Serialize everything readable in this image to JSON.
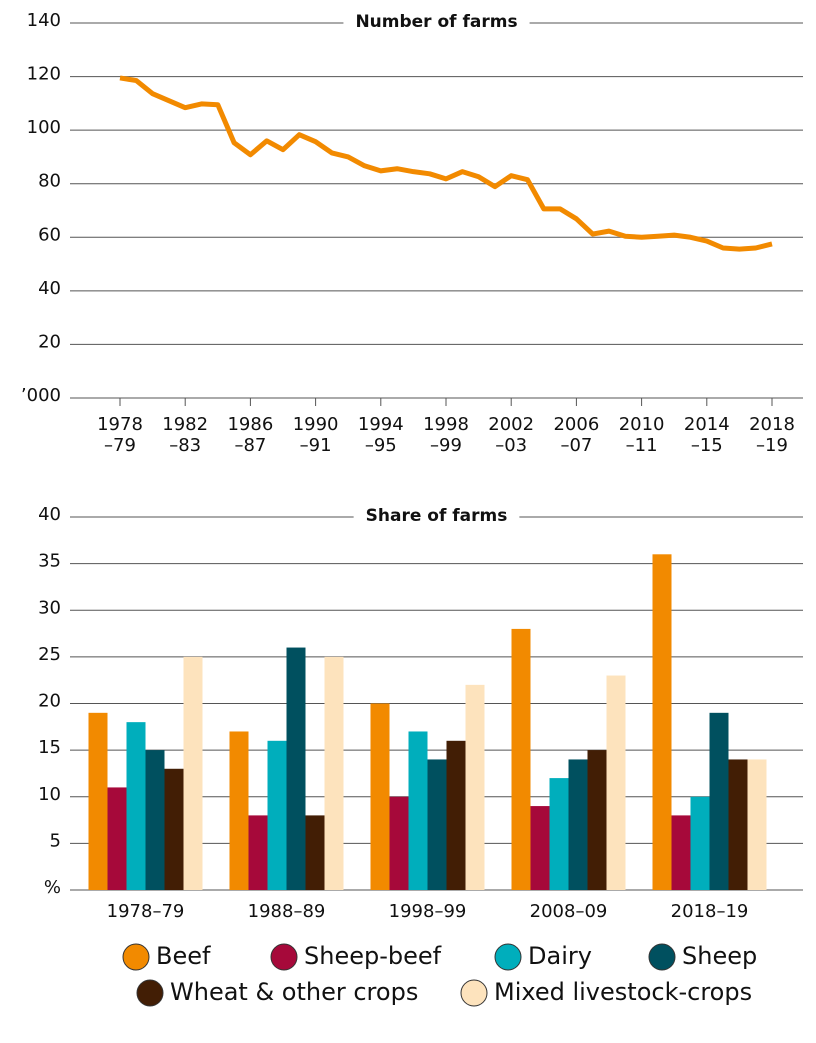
{
  "chart_data": [
    {
      "type": "line",
      "title": "Number of farms",
      "categories": [
        "1978–79",
        null,
        null,
        null,
        "1982–83",
        null,
        null,
        null,
        "1986–87",
        null,
        null,
        null,
        "1990–91",
        null,
        null,
        null,
        "1994–95",
        null,
        null,
        null,
        "1998–99",
        null,
        null,
        null,
        "2002–03",
        null,
        null,
        null,
        "2006–07",
        null,
        null,
        null,
        "2010–11",
        null,
        null,
        null,
        "2014–15",
        null,
        null,
        null,
        "2018–19"
      ],
      "values": [
        119.5,
        118.5,
        113.6,
        111,
        108.4,
        109.8,
        109.5,
        95.3,
        90.8,
        96,
        92.7,
        98.3,
        95.7,
        91.5,
        90,
        86.7,
        84.8,
        85.6,
        84.5,
        83.7,
        81.8,
        84.5,
        82.6,
        78.9,
        83,
        81.5,
        70.6,
        70.6,
        66.9,
        61.2,
        62.3,
        60.4,
        60,
        60.4,
        60.8,
        60,
        58.6,
        56,
        55.6,
        56,
        57.5
      ],
      "color": "#f28a00",
      "ylim": [
        0,
        140
      ],
      "yticks": [
        {
          "value": 0,
          "label": "’000"
        },
        20,
        40,
        60,
        80,
        100,
        120,
        140
      ],
      "grid": true
    },
    {
      "type": "bar",
      "title": "Share of farms",
      "categories": [
        "1978–79",
        "1988–89",
        "1998–99",
        "2008–09",
        "2018–19"
      ],
      "series": [
        {
          "name": "Beef",
          "color": "#f28a00",
          "values": [
            19,
            17,
            20,
            28,
            36
          ]
        },
        {
          "name": "Sheep-beef",
          "color": "#a6093a",
          "values": [
            11,
            8,
            10,
            9,
            8
          ]
        },
        {
          "name": "Dairy",
          "color": "#00aebc",
          "values": [
            18,
            16,
            17,
            12,
            10
          ]
        },
        {
          "name": "Sheep",
          "color": "#00505f",
          "values": [
            15,
            26,
            14,
            14,
            19
          ]
        },
        {
          "name": "Wheat & other crops",
          "color": "#421e05",
          "values": [
            13,
            8,
            16,
            15,
            14
          ]
        },
        {
          "name": "Mixed livestock-crops",
          "color": "#fde3bd",
          "values": [
            25,
            25,
            22,
            23,
            14
          ]
        }
      ],
      "ylim": [
        0,
        40
      ],
      "yticks": [
        {
          "value": 0,
          "label": "%"
        },
        5,
        10,
        15,
        20,
        25,
        30,
        35,
        40
      ],
      "grid": true,
      "legend": "bottom"
    }
  ]
}
